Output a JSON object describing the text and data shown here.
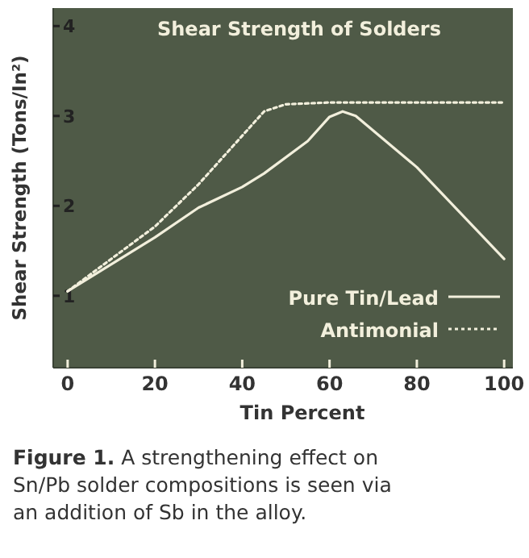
{
  "chart_data": {
    "type": "line",
    "title": "Shear Strength of Solders",
    "xlabel": "Tin Percent",
    "ylabel": "Shear Strength (Tons/In²)",
    "xlim": [
      -3.3,
      102
    ],
    "ylim": [
      0.2,
      4.2
    ],
    "xticks": [
      0,
      20,
      40,
      60,
      80,
      100
    ],
    "yticks": [
      1,
      2,
      3,
      4
    ],
    "grid": false,
    "legend": "bottom right",
    "marker": "none",
    "series": [
      {
        "name": "Pure Tin/Lead",
        "color": "#f2efdc",
        "line_style": "solid",
        "x": [
          0,
          20,
          30,
          40,
          45,
          55,
          60,
          63,
          66,
          80,
          100
        ],
        "values": [
          1.05,
          1.65,
          1.98,
          2.21,
          2.36,
          2.72,
          2.99,
          3.05,
          3.0,
          2.43,
          1.41
        ]
      },
      {
        "name": "Antimonial",
        "color": "#f2efdc",
        "line_style": "dotted",
        "x": [
          0,
          20,
          30,
          40,
          45,
          50,
          60,
          100
        ],
        "values": [
          1.05,
          1.77,
          2.24,
          2.78,
          3.05,
          3.13,
          3.15,
          3.15
        ]
      }
    ],
    "annotations": [
      "Figure 1. A strengthening effect on Sn/Pb solder compositions is seen via an addition of Sb in the alloy."
    ]
  }
}
